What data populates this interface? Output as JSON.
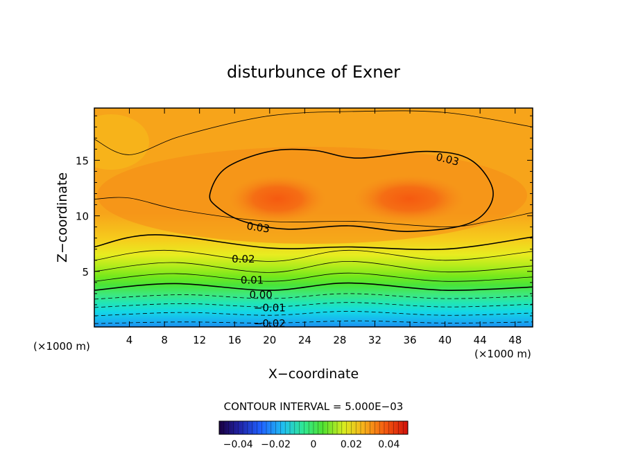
{
  "chart_data": {
    "type": "heatmap",
    "title": "disturbunce of Exner",
    "xlabel": "X−coordinate",
    "ylabel": "Z−coordinate",
    "x_unit_left": "(×1000 m)",
    "x_unit_right": "(×1000 m)",
    "xlim": [
      0,
      50
    ],
    "ylim": [
      0,
      19.7
    ],
    "x_ticks": [
      4,
      8,
      12,
      16,
      20,
      24,
      28,
      32,
      36,
      40,
      44,
      48
    ],
    "y_ticks": [
      5,
      10,
      15
    ],
    "contour_interval_text": "CONTOUR INTERVAL = 5.000E−03",
    "colorbar": {
      "range": [
        -0.05,
        0.05
      ],
      "labels": [
        "−0.04",
        "−0.02",
        "0",
        "0.02",
        "0.04"
      ],
      "label_values": [
        -0.04,
        -0.02,
        0,
        0.02,
        0.04
      ]
    },
    "contours": [
      {
        "level": -0.02,
        "label": "−0.02",
        "label_x": 20,
        "label_z": 0.3,
        "style": "dashed",
        "bold": false,
        "z": [
          [
            0,
            0.3
          ],
          [
            10,
            0.45
          ],
          [
            20,
            0.35
          ],
          [
            30,
            0.55
          ],
          [
            40,
            0.35
          ],
          [
            50,
            0.45
          ]
        ]
      },
      {
        "level": -0.015,
        "label": "",
        "style": "dashed",
        "bold": false,
        "z": [
          [
            0,
            1.0
          ],
          [
            10,
            1.3
          ],
          [
            20,
            1.05
          ],
          [
            29,
            1.4
          ],
          [
            40,
            1.05
          ],
          [
            50,
            1.25
          ]
        ]
      },
      {
        "level": -0.01,
        "label": "−0.01",
        "label_x": 20,
        "label_z": 1.7,
        "style": "dashed",
        "bold": false,
        "z": [
          [
            0,
            1.75
          ],
          [
            10,
            2.1
          ],
          [
            20,
            1.8
          ],
          [
            29,
            2.2
          ],
          [
            40,
            1.8
          ],
          [
            50,
            2.05
          ]
        ]
      },
      {
        "level": -0.005,
        "label": "",
        "style": "dashed",
        "bold": false,
        "z": [
          [
            0,
            2.5
          ],
          [
            10,
            2.9
          ],
          [
            20,
            2.55
          ],
          [
            29,
            3.0
          ],
          [
            40,
            2.55
          ],
          [
            50,
            2.8
          ]
        ]
      },
      {
        "level": 0.0,
        "label": "0.00",
        "label_x": 19,
        "label_z": 2.9,
        "style": "solid",
        "bold": true,
        "z": [
          [
            0,
            3.3
          ],
          [
            9,
            3.9
          ],
          [
            20,
            3.3
          ],
          [
            29,
            3.95
          ],
          [
            40,
            3.3
          ],
          [
            50,
            3.6
          ]
        ]
      },
      {
        "level": 0.005,
        "label": "",
        "style": "solid",
        "bold": false,
        "z": [
          [
            0,
            4.1
          ],
          [
            9,
            4.8
          ],
          [
            20,
            4.1
          ],
          [
            29,
            4.85
          ],
          [
            40,
            4.1
          ],
          [
            50,
            4.5
          ]
        ]
      },
      {
        "level": 0.01,
        "label": "0.01",
        "label_x": 18,
        "label_z": 4.2,
        "style": "solid",
        "bold": false,
        "z": [
          [
            0,
            5.0
          ],
          [
            9,
            5.8
          ],
          [
            20,
            4.9
          ],
          [
            29,
            5.9
          ],
          [
            40,
            4.95
          ],
          [
            50,
            5.5
          ]
        ]
      },
      {
        "level": 0.015,
        "label": "",
        "style": "solid",
        "bold": false,
        "z": [
          [
            0,
            6.0
          ],
          [
            8,
            6.9
          ],
          [
            20,
            5.9
          ],
          [
            29,
            6.9
          ],
          [
            40,
            6.0
          ],
          [
            50,
            6.8
          ]
        ]
      },
      {
        "level": 0.02,
        "label": "0.02",
        "label_x": 17,
        "label_z": 6.1,
        "style": "solid",
        "bold": true,
        "z": [
          [
            0,
            7.2
          ],
          [
            7,
            8.3
          ],
          [
            20,
            7.1
          ],
          [
            29,
            7.2
          ],
          [
            40,
            7.0
          ],
          [
            50,
            8.1
          ]
        ]
      },
      {
        "level": 0.025,
        "label": "",
        "style": "solid",
        "bold": false,
        "z": [
          [
            0,
            11.5
          ],
          [
            4,
            11.6
          ],
          [
            10,
            10.5
          ],
          [
            20,
            9.5
          ],
          [
            30,
            9.5
          ],
          [
            40,
            9.0
          ],
          [
            45,
            9.5
          ],
          [
            50,
            10.3
          ]
        ]
      },
      {
        "level": 0.025,
        "label": "",
        "style": "solid",
        "bold": false,
        "z": [
          [
            0,
            16.9
          ],
          [
            4,
            15.5
          ],
          [
            10,
            17.2
          ],
          [
            20,
            19.0
          ],
          [
            30,
            19.4
          ],
          [
            40,
            19.3
          ],
          [
            50,
            18.0
          ]
        ]
      }
    ],
    "closed_contour": {
      "level": 0.03,
      "label": "0.03",
      "label_top": "0.03",
      "bold": true,
      "points": [
        [
          13.2,
          12.0
        ],
        [
          15,
          14.3
        ],
        [
          20,
          15.8
        ],
        [
          25,
          15.9
        ],
        [
          30,
          15.2
        ],
        [
          38,
          15.8
        ],
        [
          43,
          15.0
        ],
        [
          45.5,
          12.0
        ],
        [
          43,
          9.4
        ],
        [
          36,
          8.6
        ],
        [
          29,
          9.1
        ],
        [
          22,
          8.8
        ],
        [
          17,
          9.5
        ],
        [
          14,
          10.8
        ]
      ]
    }
  }
}
